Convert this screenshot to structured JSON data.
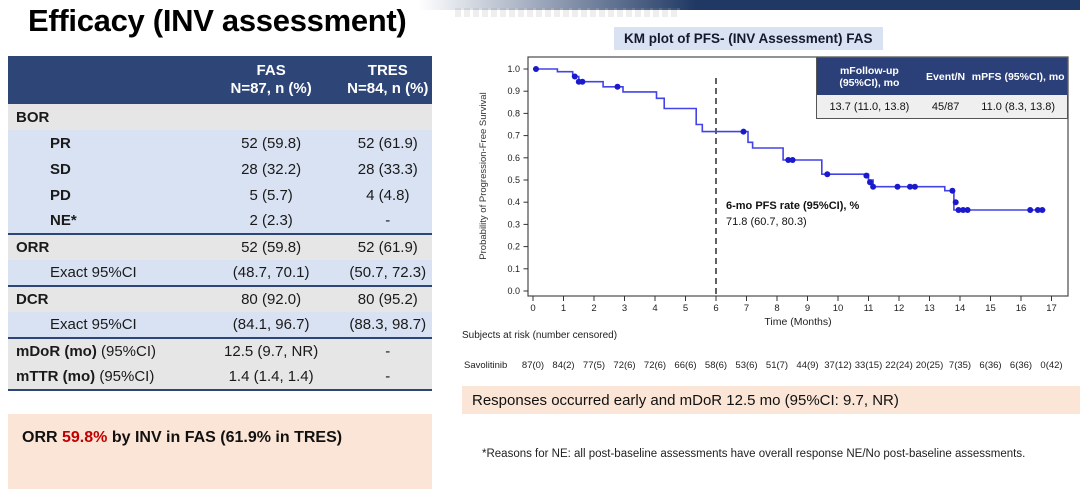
{
  "title": "Efficacy (INV assessment)",
  "table": {
    "columns": [
      {
        "line1": "FAS",
        "line2": "N=87, n (%)"
      },
      {
        "line1": "TRES",
        "line2": "N=84, n (%)"
      }
    ],
    "rows": [
      {
        "label": "BOR",
        "note": "",
        "fas": "",
        "tres": "",
        "bg": "gray",
        "bold": true,
        "indent": false,
        "rule_top": false
      },
      {
        "label": "PR",
        "note": "",
        "fas": "52 (59.8)",
        "tres": "52 (61.9)",
        "bg": "blue",
        "bold": true,
        "indent": true,
        "rule_top": false
      },
      {
        "label": "SD",
        "note": "",
        "fas": "28 (32.2)",
        "tres": "28 (33.3)",
        "bg": "blue",
        "bold": true,
        "indent": true,
        "rule_top": false
      },
      {
        "label": "PD",
        "note": "",
        "fas": "5 (5.7)",
        "tres": "4 (4.8)",
        "bg": "blue",
        "bold": true,
        "indent": true,
        "rule_top": false
      },
      {
        "label": "NE*",
        "note": "",
        "fas": "2 (2.3)",
        "tres": "-",
        "bg": "blue",
        "bold": true,
        "indent": true,
        "rule_top": false
      },
      {
        "label": "ORR",
        "note": "",
        "fas": "52 (59.8)",
        "tres": "52 (61.9)",
        "bg": "gray",
        "bold": true,
        "indent": false,
        "rule_top": true
      },
      {
        "label": "Exact 95%CI",
        "note": "",
        "fas": "(48.7, 70.1)",
        "tres": "(50.7, 72.3)",
        "bg": "blue",
        "bold": false,
        "indent": true,
        "rule_top": false
      },
      {
        "label": "DCR",
        "note": "",
        "fas": "80 (92.0)",
        "tres": "80 (95.2)",
        "bg": "gray",
        "bold": true,
        "indent": false,
        "rule_top": true
      },
      {
        "label": "Exact 95%CI",
        "note": "",
        "fas": "(84.1, 96.7)",
        "tres": "(88.3, 98.7)",
        "bg": "blue",
        "bold": false,
        "indent": true,
        "rule_top": false
      },
      {
        "label": "mDoR (mo)",
        "note": " (95%CI)",
        "fas": "12.5 (9.7, NR)",
        "tres": "-",
        "bg": "gray",
        "bold": true,
        "indent": false,
        "rule_top": true
      },
      {
        "label": "mTTR (mo)",
        "note": " (95%CI)",
        "fas": "1.4 (1.4, 1.4)",
        "tres": "-",
        "bg": "gray",
        "bold": true,
        "indent": false,
        "rule_top": false
      }
    ]
  },
  "callout_left": {
    "prefix": "ORR ",
    "highlight": "59.8%",
    "suffix": " by INV in FAS (61.9% in TRES)"
  },
  "callout_right": "Responses occurred early and mDoR 12.5 mo (95%CI: 9.7, NR)",
  "footnote": "*Reasons for NE: all post-baseline assessments have overall response NE/No post-baseline assessments.",
  "km": {
    "title": "KM plot of PFS- (INV Assessment) FAS",
    "stats": {
      "headers": [
        "mFollow-up (95%CI), mo",
        "Event/N",
        "mPFS (95%CI), mo"
      ],
      "values": [
        "13.7 (11.0, 13.8)",
        "45/87",
        "11.0 (8.3, 13.8)"
      ]
    },
    "annotation": {
      "line1": "6-mo PFS rate (95%CI), %",
      "line2": "71.8 (60.7, 80.3)"
    }
  },
  "chart_data": {
    "type": "line",
    "subtype": "kaplan-meier-step",
    "title": "KM plot of PFS- (INV Assessment) FAS",
    "xlabel": "Time (Months)",
    "ylabel": "Probability of Progression-Free Survival",
    "xlim": [
      0,
      17
    ],
    "ylim": [
      0.0,
      1.0
    ],
    "x_ticks": [
      0,
      1,
      2,
      3,
      4,
      5,
      6,
      7,
      8,
      9,
      10,
      11,
      12,
      13,
      14,
      15,
      16,
      17
    ],
    "y_ticks": [
      0.0,
      0.1,
      0.2,
      0.3,
      0.4,
      0.5,
      0.6,
      0.7,
      0.8,
      0.9,
      1.0
    ],
    "grid": false,
    "reference_line_x": 6,
    "series_name": "Savolitinib",
    "km_steps": [
      [
        0,
        1.0
      ],
      [
        0.8,
        0.988
      ],
      [
        1.3,
        0.966
      ],
      [
        1.5,
        0.943
      ],
      [
        2.3,
        0.92
      ],
      [
        2.95,
        0.897
      ],
      [
        4.05,
        0.868
      ],
      [
        4.3,
        0.822
      ],
      [
        5.35,
        0.75
      ],
      [
        5.55,
        0.718
      ],
      [
        7.05,
        0.67
      ],
      [
        7.2,
        0.644
      ],
      [
        8.2,
        0.59
      ],
      [
        9.47,
        0.526
      ],
      [
        11.0,
        0.5
      ],
      [
        11.15,
        0.47
      ],
      [
        13.5,
        0.452
      ],
      [
        13.8,
        0.365
      ]
    ],
    "end_time": 16.8,
    "censor_marks": [
      [
        0.1,
        1.0
      ],
      [
        1.37,
        0.966
      ],
      [
        1.5,
        0.943
      ],
      [
        1.62,
        0.943
      ],
      [
        2.77,
        0.92
      ],
      [
        6.9,
        0.718
      ],
      [
        8.37,
        0.59
      ],
      [
        8.51,
        0.59
      ],
      [
        9.65,
        0.526
      ],
      [
        10.93,
        0.52
      ],
      [
        11.05,
        0.49
      ],
      [
        11.15,
        0.47
      ],
      [
        11.95,
        0.47
      ],
      [
        12.36,
        0.47
      ],
      [
        12.52,
        0.47
      ],
      [
        13.75,
        0.452
      ],
      [
        13.86,
        0.4
      ],
      [
        13.95,
        0.365
      ],
      [
        14.1,
        0.365
      ],
      [
        14.25,
        0.365
      ],
      [
        16.3,
        0.365
      ],
      [
        16.55,
        0.365
      ],
      [
        16.7,
        0.365
      ]
    ],
    "subjects_at_risk": {
      "caption": "Subjects at risk (number censored)",
      "label": "Savolitinib",
      "times": [
        0,
        1,
        2,
        3,
        4,
        5,
        6,
        7,
        8,
        9,
        10,
        11,
        12,
        13,
        14,
        15,
        16,
        17
      ],
      "values": [
        "87(0)",
        "84(2)",
        "77(5)",
        "72(6)",
        "72(6)",
        "66(6)",
        "58(6)",
        "53(6)",
        "51(7)",
        "44(9)",
        "37(12)",
        "33(15)",
        "22(24)",
        "20(25)",
        "7(35)",
        "6(36)",
        "6(36)",
        "0(42)"
      ]
    }
  },
  "colors": {
    "header_navy": "#2e4577",
    "inset_navy": "#2b3f78",
    "topbar_navy": "#1f3864",
    "row_blue": "#d9e2f3",
    "row_gray": "#e7e6e6",
    "callout_peach": "#fbe5d6",
    "title_box_blue": "#d9e2f2",
    "accent_red": "#c00000",
    "curve_blue": "#4343e6",
    "censor_blue": "#1a1acc"
  }
}
